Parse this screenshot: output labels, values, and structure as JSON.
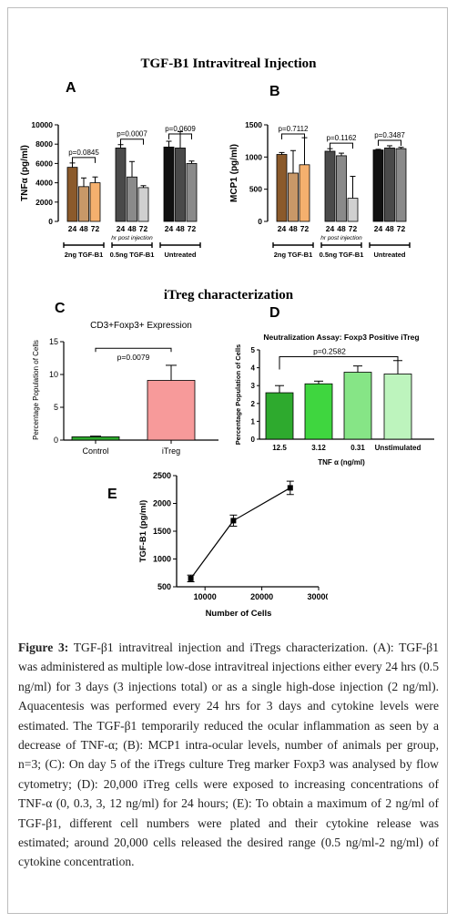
{
  "figure": {
    "section1_title": "TGF-B1 Intravitreal Injection",
    "section2_title": "iTreg characterization",
    "letters": {
      "A": "A",
      "B": "B",
      "C": "C",
      "D": "D",
      "E": "E"
    }
  },
  "colors": {
    "brown": "#8B5A2B",
    "tan": "#C89868",
    "peach": "#F5B06E",
    "dark_gray": "#4a4a4a",
    "gray": "#8a8a8a",
    "light_gray": "#d0d0d0",
    "black": "#111111",
    "pink": "#F79A9A",
    "green1": "#2EAA2E",
    "green2": "#3FD63F",
    "green3": "#86E586",
    "green4": "#BDF4BD"
  },
  "chart_data": [
    {
      "id": "A",
      "type": "bar",
      "ylabel": "TNFα (pg/ml)",
      "ylim": [
        0,
        10000
      ],
      "yticks": [
        0,
        2000,
        4000,
        6000,
        8000,
        10000
      ],
      "x_tick_labels": [
        "24",
        "48",
        "72"
      ],
      "x_axis_note": "hr post injection",
      "groups": [
        {
          "label": "2ng TGF-B1",
          "values": [
            5600,
            3600,
            4000
          ],
          "errors": [
            450,
            900,
            600
          ],
          "p": "p=0.0845",
          "colors": [
            "#8B5A2B",
            "#C89868",
            "#F5B06E"
          ]
        },
        {
          "label": "0.5ng TGF-B1",
          "values": [
            7600,
            4600,
            3500
          ],
          "errors": [
            350,
            1600,
            200
          ],
          "p": "p=0.0007",
          "colors": [
            "#4a4a4a",
            "#8a8a8a",
            "#d0d0d0"
          ]
        },
        {
          "label": "Untreated",
          "values": [
            7700,
            7600,
            6000
          ],
          "errors": [
            600,
            1700,
            250
          ],
          "p": "p=0.0609",
          "colors": [
            "#111111",
            "#4a4a4a",
            "#8a8a8a"
          ]
        }
      ]
    },
    {
      "id": "B",
      "type": "bar",
      "ylabel": "MCP1 (pg/ml)",
      "ylim": [
        0,
        1500
      ],
      "yticks": [
        0,
        500,
        1000,
        1500
      ],
      "x_tick_labels": [
        "24",
        "48",
        "72"
      ],
      "x_axis_note": "hr post injection",
      "groups": [
        {
          "label": "2ng TGF-B1",
          "values": [
            1040,
            750,
            880
          ],
          "errors": [
            30,
            350,
            420
          ],
          "p": "p=0.7112",
          "colors": [
            "#8B5A2B",
            "#C89868",
            "#F5B06E"
          ]
        },
        {
          "label": "0.5ng TGF-B1",
          "values": [
            1090,
            1020,
            360
          ],
          "errors": [
            40,
            40,
            340
          ],
          "p": "p=0.1162",
          "colors": [
            "#4a4a4a",
            "#8a8a8a",
            "#d0d0d0"
          ]
        },
        {
          "label": "Untreated",
          "values": [
            1110,
            1140,
            1130
          ],
          "errors": [
            10,
            35,
            20
          ],
          "p": "p=0.3487",
          "colors": [
            "#111111",
            "#4a4a4a",
            "#8a8a8a"
          ]
        }
      ]
    },
    {
      "id": "C",
      "type": "bar",
      "title": "CD3+Foxp3+ Expression",
      "ylabel": "Percentage Population of Cells",
      "ylim": [
        0,
        15
      ],
      "yticks": [
        0,
        5,
        10,
        15
      ],
      "categories": [
        "Control",
        "iTreg"
      ],
      "values": [
        0.5,
        9.1
      ],
      "errors": [
        0.1,
        2.3
      ],
      "p": "p=0.0079",
      "colors": [
        "#2EAA2E",
        "#F79A9A"
      ]
    },
    {
      "id": "D",
      "type": "bar",
      "title": "Neutralization  Assay: Foxp3 Positive iTreg",
      "ylabel": "Percentage Population of Cells",
      "xlabel": "TNF α  (ng/ml)",
      "ylim": [
        0,
        5
      ],
      "yticks": [
        0,
        1,
        2,
        3,
        4,
        5
      ],
      "categories": [
        "12.5",
        "3.12",
        "0.31",
        "Unstimulated"
      ],
      "values": [
        2.6,
        3.1,
        3.75,
        3.65
      ],
      "errors": [
        0.4,
        0.15,
        0.35,
        0.75
      ],
      "p": "p=0.2582",
      "colors": [
        "#2EAA2E",
        "#3FD63F",
        "#86E586",
        "#BDF4BD"
      ]
    },
    {
      "id": "E",
      "type": "line",
      "ylabel": "TGF-B1 (pg/ml)",
      "xlabel": "Number of Cells",
      "xlim": [
        5000,
        30000
      ],
      "ylim": [
        500,
        2500
      ],
      "xticks": [
        10000,
        20000,
        30000
      ],
      "yticks": [
        500,
        1000,
        1500,
        2000,
        2500
      ],
      "x": [
        7500,
        15000,
        25000
      ],
      "y": [
        650,
        1690,
        2280
      ],
      "errors": [
        60,
        100,
        120
      ]
    }
  ],
  "caption": {
    "label": "Figure 3:",
    "text": " TGF-β1 intravitreal injection and iTregs characterization. (A): TGF-β1 was administered as multiple low-dose intravitreal injections either every 24 hrs (0.5 ng/ml) for 3 days (3 injections total) or as a single high-dose injection (2 ng/ml). Aquacentesis was performed every 24 hrs for 3 days and cytokine levels were estimated. The TGF-β1 temporarily reduced the ocular inflammation as seen by a decrease of TNF-α; (B): MCP1 intra-ocular levels, number of animals per group, n=3; (C): On day 5 of the iTregs culture Treg marker Foxp3 was analysed by flow cytometry; (D): 20,000 iTreg cells were exposed to increasing concentrations of TNF-α (0, 0.3, 3, 12 ng/ml) for 24 hours; (E): To obtain a maximum of 2 ng/ml of TGF-β1, different cell numbers were plated and their cytokine release was estimated; around 20,000 cells released the desired range (0.5 ng/ml-2 ng/ml) of cytokine concentration."
  }
}
